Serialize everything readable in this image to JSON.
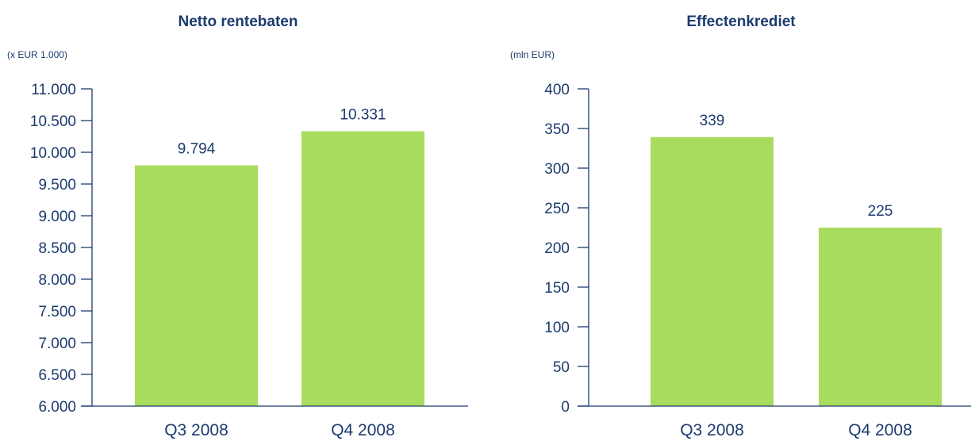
{
  "colors": {
    "bar": "#a8dc5e",
    "text": "#1d3b6f",
    "axis": "#1d3b6f"
  },
  "chart_data": [
    {
      "type": "bar",
      "title": "Netto rentebaten",
      "unit": "(x EUR 1.000)",
      "categories": [
        "Q3 2008",
        "Q4 2008"
      ],
      "values": [
        9794,
        10331
      ],
      "value_labels": [
        "9.794",
        "10.331"
      ],
      "ylim": [
        6000,
        11000
      ],
      "yticks": [
        6000,
        6500,
        7000,
        7500,
        8000,
        8500,
        9000,
        9500,
        10000,
        10500,
        11000
      ],
      "ytick_labels": [
        "6.000",
        "6.500",
        "7.000",
        "7.500",
        "8.000",
        "8.500",
        "9.000",
        "9.500",
        "10.000",
        "10.500",
        "11.000"
      ],
      "grid": false,
      "legend": "none"
    },
    {
      "type": "bar",
      "title": "Effectenkrediet",
      "unit": "(mln EUR)",
      "categories": [
        "Q3 2008",
        "Q4 2008"
      ],
      "values": [
        339,
        225
      ],
      "value_labels": [
        "339",
        "225"
      ],
      "ylim": [
        0,
        400
      ],
      "yticks": [
        0,
        50,
        100,
        150,
        200,
        250,
        300,
        350,
        400
      ],
      "ytick_labels": [
        "0",
        "50",
        "100",
        "150",
        "200",
        "250",
        "300",
        "350",
        "400"
      ],
      "grid": false,
      "legend": "none"
    }
  ]
}
